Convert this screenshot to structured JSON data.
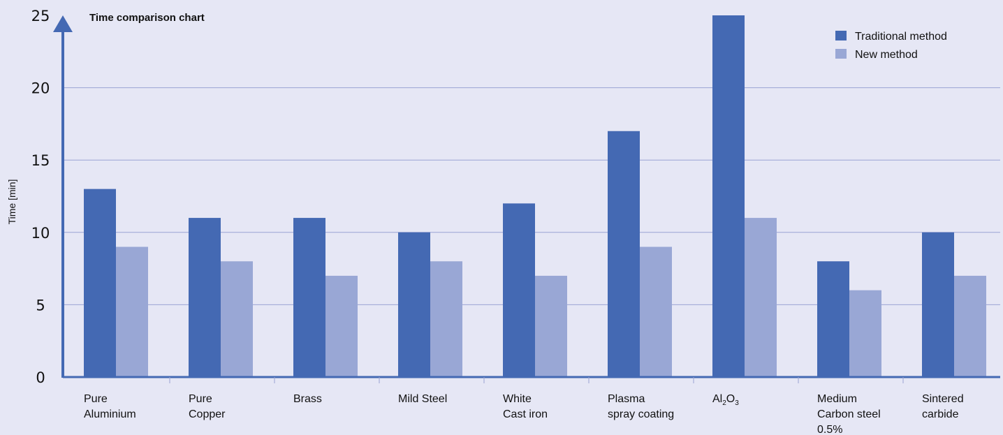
{
  "chart_data": {
    "type": "bar",
    "title": "Time comparison chart",
    "ylabel": "Time [min]",
    "xlabel": "",
    "ylim": [
      0,
      25
    ],
    "yticks": [
      0,
      5,
      10,
      15,
      20,
      25
    ],
    "grid": true,
    "legend_position": "top-right",
    "categories": [
      [
        "Pure",
        "Aluminium"
      ],
      [
        "Pure",
        "Copper"
      ],
      [
        "Brass"
      ],
      [
        "Mild Steel"
      ],
      [
        "White",
        "Cast iron"
      ],
      [
        "Plasma",
        "spray coating"
      ],
      [
        "Al2O3"
      ],
      [
        "Medium",
        "Carbon steel",
        "0.5%"
      ],
      [
        "Sintered",
        "carbide"
      ]
    ],
    "series": [
      {
        "name": "Traditional method",
        "color": "#4469b3",
        "values": [
          13,
          11,
          11,
          10,
          12,
          17,
          25,
          8,
          10
        ]
      },
      {
        "name": "New method",
        "color": "#99a7d5",
        "values": [
          9,
          8,
          7,
          8,
          7,
          9,
          11,
          6,
          7
        ]
      }
    ],
    "axis_color": "#4469b3",
    "grid_color": "#9aa3d3"
  }
}
